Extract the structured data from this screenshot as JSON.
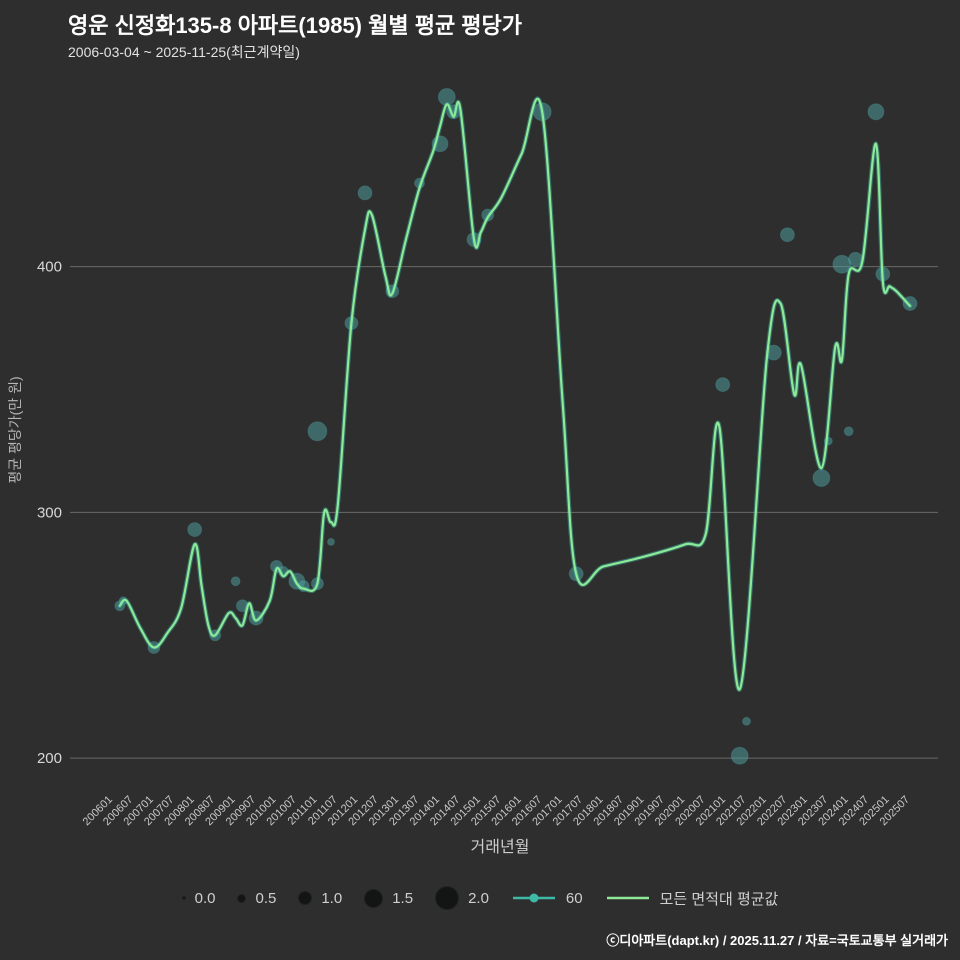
{
  "header": {
    "title": "영운 신정화135-8 아파트(1985) 월별 평균 평당가",
    "subtitle": "2006-03-04 ~ 2025-11-25(최근계약일)"
  },
  "colors": {
    "background": "#2e2e2e",
    "line_green": "#8de997",
    "line_teal": "#3fb8a6",
    "bubble": "#4fa3a3",
    "grid": "#9a9a9a",
    "tick_text": "#c8c8c8",
    "axis_text": "#b5b5b5"
  },
  "chart_data": {
    "type": "line+scatter",
    "title": "영운 신정화135-8 아파트(1985) 월별 평균 평당가",
    "xlabel": "거래년월",
    "ylabel": "평균 평당가(만 원)",
    "ylim": [
      185,
      480
    ],
    "yticks": [
      200,
      300,
      400
    ],
    "xticks": [
      "200601",
      "200607",
      "200701",
      "200707",
      "200801",
      "200807",
      "200901",
      "200907",
      "201001",
      "201007",
      "201101",
      "201107",
      "201201",
      "201207",
      "201301",
      "201307",
      "201401",
      "201407",
      "201501",
      "201507",
      "201601",
      "201607",
      "201701",
      "201707",
      "201801",
      "201807",
      "201901",
      "201907",
      "202001",
      "202007",
      "202101",
      "202107",
      "202201",
      "202207",
      "202301",
      "202307",
      "202401",
      "202407",
      "202501",
      "202507"
    ],
    "series": [
      {
        "name": "모든 면적대 평균값",
        "type": "line",
        "points": [
          [
            "200603",
            262
          ],
          [
            "200605",
            264
          ],
          [
            "200609",
            253
          ],
          [
            "200701",
            245
          ],
          [
            "200705",
            251
          ],
          [
            "200709",
            261
          ],
          [
            "200801",
            287
          ],
          [
            "200803",
            270
          ],
          [
            "200805",
            254
          ],
          [
            "200807",
            250
          ],
          [
            "200811",
            259
          ],
          [
            "200901",
            257
          ],
          [
            "200903",
            254
          ],
          [
            "200905",
            263
          ],
          [
            "200907",
            256
          ],
          [
            "200911",
            264
          ],
          [
            "201001",
            277
          ],
          [
            "201003",
            274
          ],
          [
            "201005",
            276
          ],
          [
            "201007",
            271
          ],
          [
            "201009",
            269
          ],
          [
            "201101",
            271
          ],
          [
            "201103",
            300
          ],
          [
            "201105",
            296
          ],
          [
            "201107",
            303
          ],
          [
            "201111",
            377
          ],
          [
            "201203",
            415
          ],
          [
            "201205",
            421
          ],
          [
            "201209",
            396
          ],
          [
            "201211",
            389
          ],
          [
            "201303",
            411
          ],
          [
            "201307",
            432
          ],
          [
            "201311",
            447
          ],
          [
            "201401",
            457
          ],
          [
            "201403",
            466
          ],
          [
            "201405",
            461
          ],
          [
            "201407",
            464
          ],
          [
            "201411",
            411
          ],
          [
            "201501",
            414
          ],
          [
            "201503",
            420
          ],
          [
            "201507",
            428
          ],
          [
            "201601",
            446
          ],
          [
            "201607",
            463
          ],
          [
            "201701",
            345
          ],
          [
            "201705",
            275
          ],
          [
            "201801",
            278
          ],
          [
            "201901",
            282
          ],
          [
            "202001",
            287
          ],
          [
            "202007",
            291
          ],
          [
            "202011",
            335
          ],
          [
            "202105",
            228
          ],
          [
            "202201",
            363
          ],
          [
            "202205",
            385
          ],
          [
            "202209",
            348
          ],
          [
            "202211",
            360
          ],
          [
            "202305",
            318
          ],
          [
            "202309",
            367
          ],
          [
            "202311",
            362
          ],
          [
            "202401",
            397
          ],
          [
            "202405",
            402
          ],
          [
            "202409",
            450
          ],
          [
            "202411",
            394
          ],
          [
            "202501",
            392
          ],
          [
            "202503",
            390
          ],
          [
            "202507",
            384
          ]
        ]
      },
      {
        "name": "60",
        "type": "bubble",
        "points": [
          [
            "200603",
            262,
            0.6
          ],
          [
            "200604",
            264,
            0.4
          ],
          [
            "200701",
            245,
            0.8
          ],
          [
            "200801",
            293,
            1.0
          ],
          [
            "200807",
            250,
            0.7
          ],
          [
            "200901",
            272,
            0.5
          ],
          [
            "200903",
            262,
            0.8
          ],
          [
            "200907",
            257,
            1.0
          ],
          [
            "201001",
            278,
            0.8
          ],
          [
            "201003",
            276,
            0.6
          ],
          [
            "201007",
            272,
            1.2
          ],
          [
            "201009",
            270,
            0.7
          ],
          [
            "201101",
            333,
            1.5
          ],
          [
            "201101",
            271,
            0.8
          ],
          [
            "201105",
            288,
            0.3
          ],
          [
            "201111",
            377,
            0.9
          ],
          [
            "201203",
            430,
            1.0
          ],
          [
            "201211",
            390,
            0.9
          ],
          [
            "201307",
            434,
            0.6
          ],
          [
            "201401",
            450,
            1.2
          ],
          [
            "201403",
            469,
            1.3
          ],
          [
            "201405",
            463,
            1.0
          ],
          [
            "201411",
            411,
            1.0
          ],
          [
            "201503",
            421,
            0.8
          ],
          [
            "201607",
            463,
            1.4
          ],
          [
            "201705",
            275,
            1.0
          ],
          [
            "202012",
            352,
            1.0
          ],
          [
            "202105",
            201,
            1.3
          ],
          [
            "202107",
            215,
            0.4
          ],
          [
            "202203",
            365,
            1.1
          ],
          [
            "202207",
            413,
            1.0
          ],
          [
            "202305",
            314,
            1.3
          ],
          [
            "202307",
            329,
            0.4
          ],
          [
            "202311",
            401,
            1.4
          ],
          [
            "202401",
            333,
            0.5
          ],
          [
            "202403",
            403,
            1.0
          ],
          [
            "202409",
            463,
            1.2
          ],
          [
            "202411",
            397,
            1.0
          ],
          [
            "202507",
            385,
            1.0
          ]
        ]
      }
    ]
  },
  "legend": {
    "sizes": [
      {
        "label": "0.0",
        "size": 0.0
      },
      {
        "label": "0.5",
        "size": 0.5
      },
      {
        "label": "1.0",
        "size": 1.0
      },
      {
        "label": "1.5",
        "size": 1.5
      },
      {
        "label": "2.0",
        "size": 2.0
      }
    ],
    "series": [
      {
        "label": "60",
        "kind": "line-dot",
        "color": "#3fb8a6"
      },
      {
        "label": "모든 면적대 평균값",
        "kind": "line",
        "color": "#8de997"
      }
    ]
  },
  "footer": {
    "credit": "ⓒ디아파트(dapt.kr) / 2025.11.27 / 자료=국토교통부 실거래가"
  }
}
